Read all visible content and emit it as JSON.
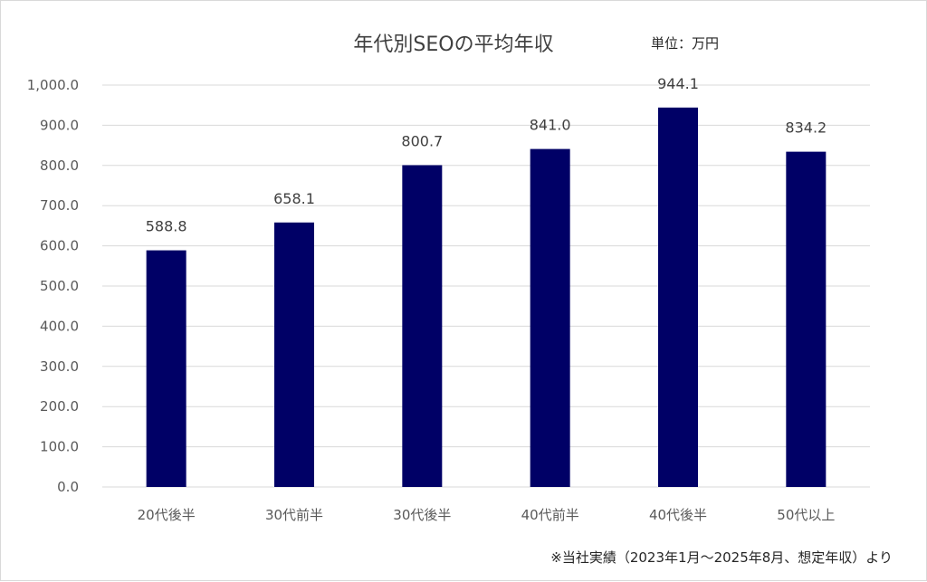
{
  "chart_data": {
    "type": "bar",
    "title": "年代別SEOの平均年収",
    "unit_label": "単位：万円",
    "categories": [
      "20代後半",
      "30代前半",
      "30代後半",
      "40代前半",
      "40代後半",
      "50代以上"
    ],
    "values": [
      588.8,
      658.1,
      800.7,
      841.0,
      944.1,
      834.2
    ],
    "value_labels": [
      "588.8",
      "658.1",
      "800.7",
      "841.0",
      "944.1",
      "834.2"
    ],
    "ylim": [
      0,
      1000
    ],
    "y_ticks": [
      0,
      100,
      200,
      300,
      400,
      500,
      600,
      700,
      800,
      900,
      1000
    ],
    "y_tick_labels": [
      "0.0",
      "100.0",
      "200.0",
      "300.0",
      "400.0",
      "500.0",
      "600.0",
      "700.0",
      "800.0",
      "900.0",
      "1,000.0"
    ],
    "xlabel": "",
    "ylabel": "",
    "grid": true,
    "legend": "none",
    "bar_color": "#000066",
    "footnote": "※当社実績（2023年1月～2025年8月、想定年収）より"
  }
}
